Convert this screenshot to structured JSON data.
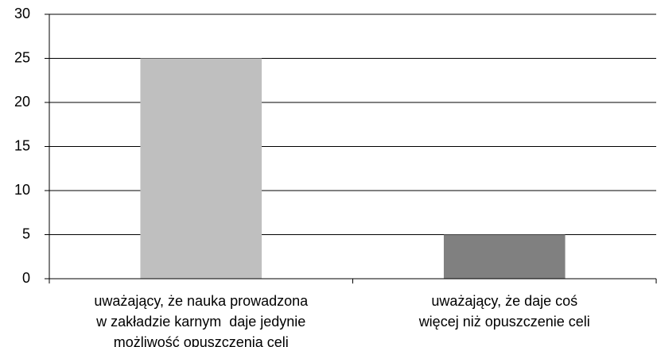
{
  "chart_data": {
    "type": "bar",
    "categories": [
      "uważający, że nauka prowadzona\nw zakładzie karnym  daje jedynie\nmożliwość opuszczenia celi",
      "uważający, że daje coś\nwięcej niż opuszczenie celi"
    ],
    "values": [
      25,
      5
    ],
    "colors": [
      "#bfbfbf",
      "#808080"
    ],
    "ylim": [
      0,
      30
    ],
    "yticks": [
      0,
      5,
      10,
      15,
      20,
      25,
      30
    ],
    "grid": true
  }
}
